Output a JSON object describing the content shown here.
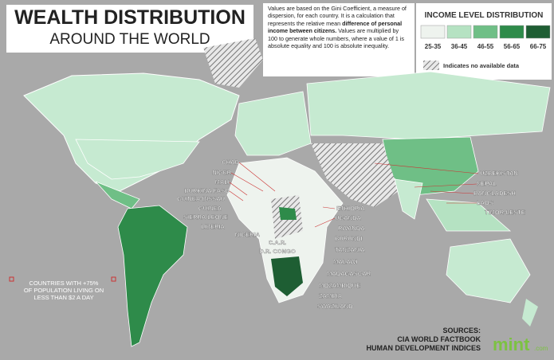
{
  "header": {
    "title": "WEALTH DISTRIBUTION",
    "subtitle": "AROUND THE WORLD"
  },
  "description": [
    "Values are based on the Gini Coefficient, a measure of dispersion, for each country. It is a calculation that represents the relative mean ",
    "difference of personal income between citizens.",
    " Values are multiplied by 100 to generate whole numbers, where a value of 1 is absolute equality and 100 is absolute inequality."
  ],
  "legend": {
    "title": "INCOME LEVEL DISTRIBUTION",
    "items": [
      {
        "label": "25-35",
        "color": "#eef3ee"
      },
      {
        "label": "36-45",
        "color": "#b5e2c2"
      },
      {
        "label": "46-55",
        "color": "#6fbf86"
      },
      {
        "label": "56-65",
        "color": "#2e8b4a"
      },
      {
        "label": "66-75",
        "color": "#1e5e33"
      }
    ],
    "no_data": "Indicates no available data"
  },
  "labels": [
    "CHAD",
    "NIGER",
    "MALI",
    "BURKINA FASO",
    "GUINEA-BISSAU",
    "GUINEA",
    "SIERRA LEONE",
    "LIBERIA",
    "NIGERIA",
    "C.A.R.",
    "D.R. CONGO",
    "ETHIOPIA",
    "UGANDA",
    "RWANDA",
    "BURUNDI",
    "TANZANIA",
    "MALAWI",
    "MADAGASCAR",
    "MOZAMBIQUE",
    "ZAMBIA",
    "SWAZILAND",
    "UZBEKISTAN",
    "NEPAL",
    "BANGLADESH",
    "LAOS",
    "TIMOR-LESTE"
  ],
  "note": [
    "COUNTRIES WITH +75%",
    "OF POPULATION LIVING ON",
    "LESS THAN $2 A DAY"
  ],
  "sources": {
    "heading": "SOURCES:",
    "items": [
      "CIA WORLD FACTBOOK",
      "HUMAN DEVELOPMENT INDICES"
    ]
  },
  "logo": {
    "name": "mint",
    "suffix": ".com"
  }
}
